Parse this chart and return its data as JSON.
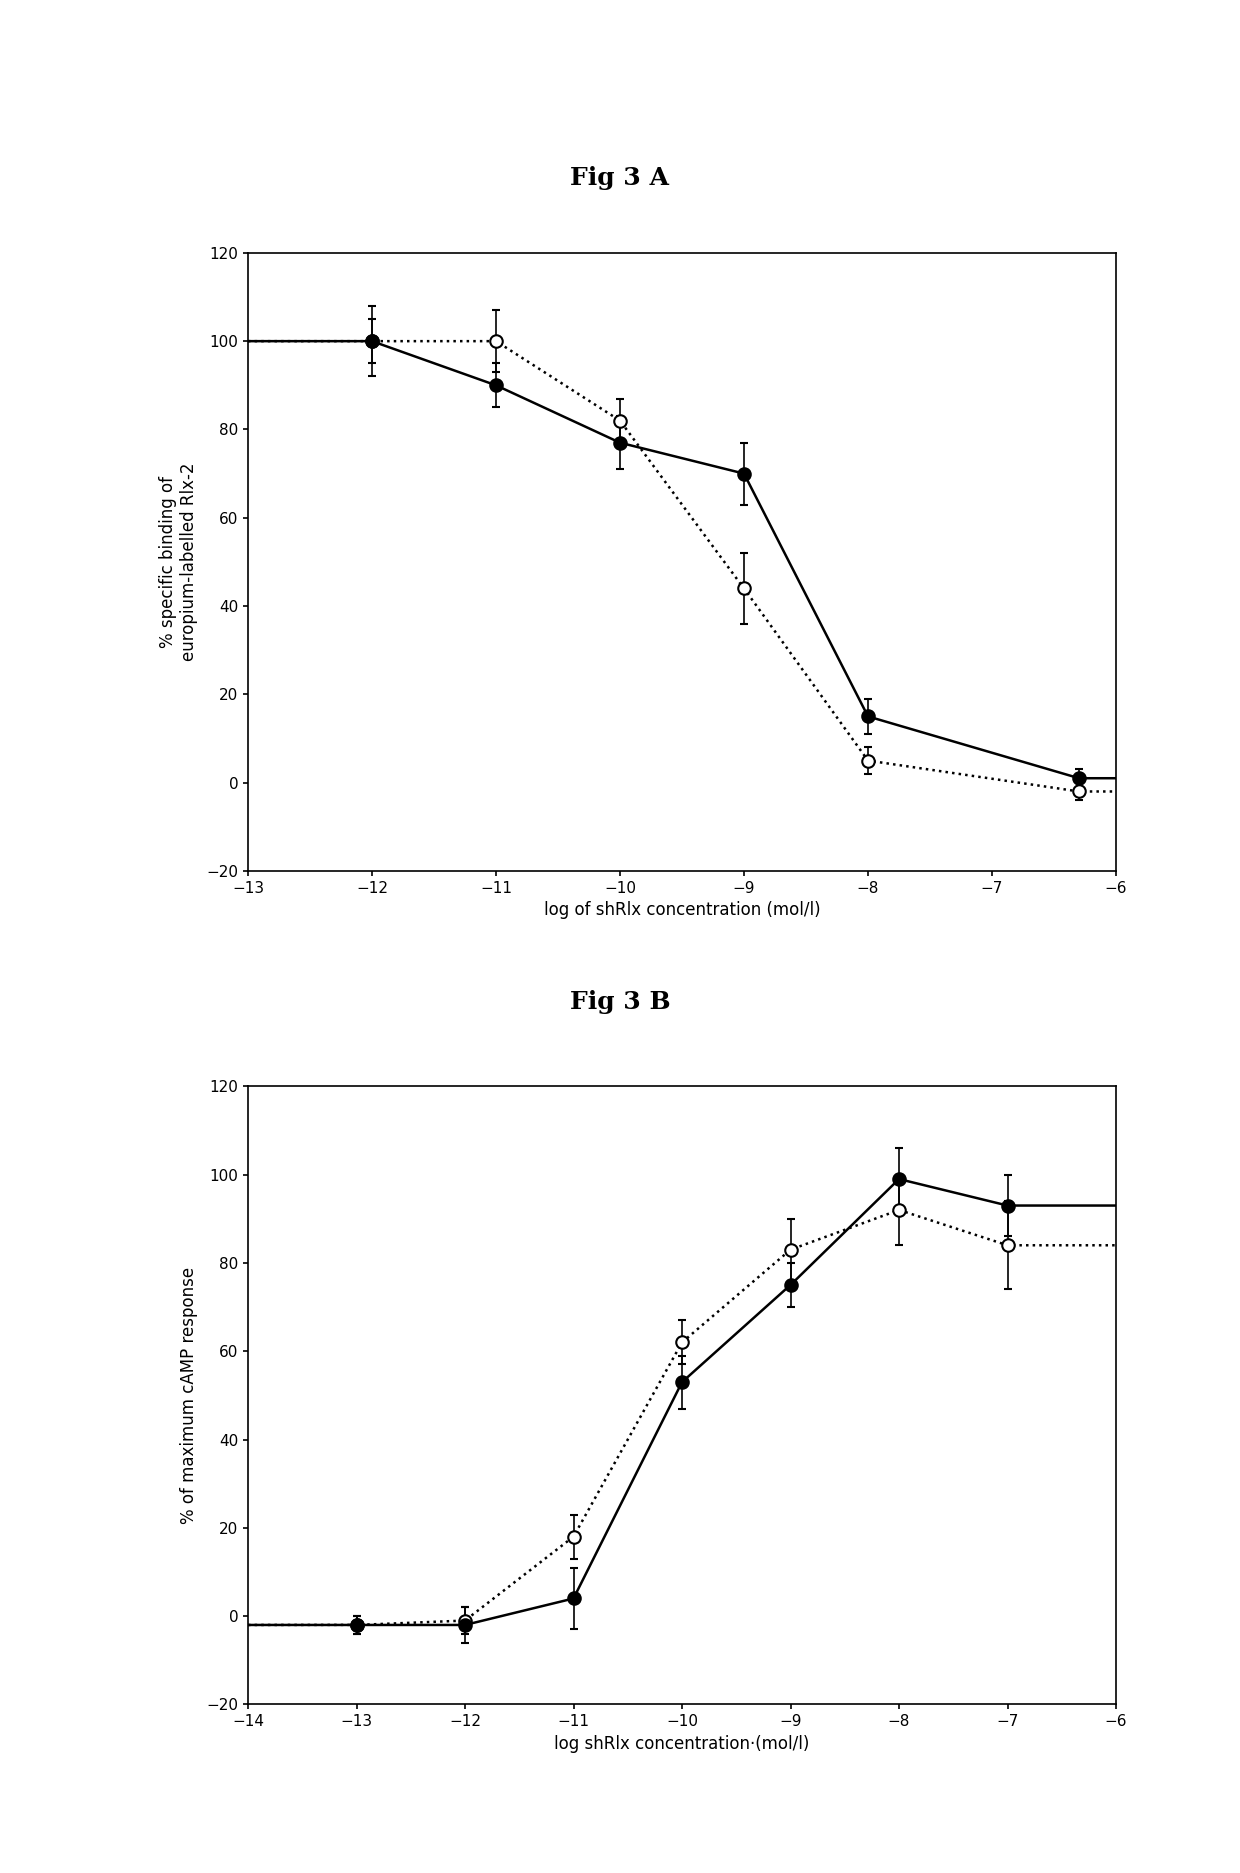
{
  "fig_title_a": "Fig 3 A",
  "fig_title_b": "Fig 3 B",
  "panel_a": {
    "open_x": [
      -12,
      -11,
      -10,
      -9,
      -8,
      -6.3
    ],
    "open_y": [
      100,
      100,
      82,
      44,
      5,
      -2
    ],
    "open_yerr": [
      8,
      7,
      5,
      8,
      3,
      2
    ],
    "closed_x": [
      -12,
      -11,
      -10,
      -9,
      -8,
      -6.3
    ],
    "closed_y": [
      100,
      90,
      77,
      70,
      15,
      1
    ],
    "closed_yerr": [
      5,
      5,
      6,
      7,
      4,
      2
    ],
    "xlabel": "log of shRlx concentration (mol/l)",
    "ylabel": "% specific binding of\neuropium-labelled Rlx-2",
    "xlim": [
      -13,
      -6
    ],
    "ylim": [
      -20,
      120
    ],
    "xticks": [
      -13,
      -12,
      -11,
      -10,
      -9,
      -8,
      -7,
      -6
    ],
    "yticks": [
      -20,
      0,
      20,
      40,
      60,
      80,
      100,
      120
    ]
  },
  "panel_b": {
    "open_x": [
      -13,
      -12,
      -11,
      -10,
      -9,
      -8,
      -7
    ],
    "open_y": [
      -2,
      -1,
      18,
      62,
      83,
      92,
      84
    ],
    "open_yerr": [
      2,
      3,
      5,
      5,
      7,
      8,
      10
    ],
    "closed_x": [
      -13,
      -12,
      -11,
      -10,
      -9,
      -8,
      -7
    ],
    "closed_y": [
      -2,
      -2,
      4,
      53,
      75,
      99,
      93
    ],
    "closed_yerr": [
      2,
      4,
      7,
      6,
      5,
      7,
      7
    ],
    "xlabel": "log shRlx concentration·(mol/l)",
    "ylabel": "% of maximum cAMP response",
    "xlim": [
      -14,
      -6
    ],
    "ylim": [
      -20,
      120
    ],
    "xticks": [
      -14,
      -13,
      -12,
      -11,
      -10,
      -9,
      -8,
      -7,
      -6
    ],
    "yticks": [
      -20,
      0,
      20,
      40,
      60,
      80,
      100,
      120
    ]
  },
  "line_color": "#000000",
  "marker_size": 9,
  "linewidth": 1.8,
  "capsize": 3,
  "elinewidth": 1.2
}
